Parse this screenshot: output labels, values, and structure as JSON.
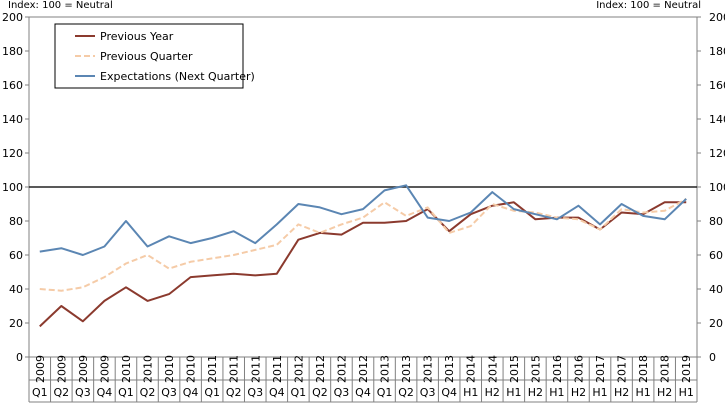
{
  "index_note_left": "Index: 100 = Neutral",
  "index_note_right": "Index: 100 = Neutral",
  "chart_data": {
    "type": "line",
    "ylim": [
      0,
      200
    ],
    "yticks": [
      0,
      20,
      40,
      60,
      80,
      100,
      120,
      140,
      160,
      180,
      200
    ],
    "grid": false,
    "reference_line": 100,
    "legend_position": "top-left (boxed)",
    "categories": [
      {
        "year": "2009",
        "period": "Q1"
      },
      {
        "year": "2009",
        "period": "Q2"
      },
      {
        "year": "2009",
        "period": "Q3"
      },
      {
        "year": "2009",
        "period": "Q4"
      },
      {
        "year": "2010",
        "period": "Q1"
      },
      {
        "year": "2010",
        "period": "Q2"
      },
      {
        "year": "2010",
        "period": "Q3"
      },
      {
        "year": "2010",
        "period": "Q4"
      },
      {
        "year": "2011",
        "period": "Q1"
      },
      {
        "year": "2011",
        "period": "Q2"
      },
      {
        "year": "2011",
        "period": "Q3"
      },
      {
        "year": "2011",
        "period": "Q4"
      },
      {
        "year": "2012",
        "period": "Q1"
      },
      {
        "year": "2012",
        "period": "Q2"
      },
      {
        "year": "2012",
        "period": "Q3"
      },
      {
        "year": "2012",
        "period": "Q4"
      },
      {
        "year": "2013",
        "period": "Q1"
      },
      {
        "year": "2013",
        "period": "Q2"
      },
      {
        "year": "2013",
        "period": "Q3"
      },
      {
        "year": "2013",
        "period": "Q4"
      },
      {
        "year": "2014",
        "period": "H1"
      },
      {
        "year": "2014",
        "period": "H2"
      },
      {
        "year": "2015",
        "period": "H1"
      },
      {
        "year": "2015",
        "period": "H2"
      },
      {
        "year": "2016",
        "period": "H1"
      },
      {
        "year": "2016",
        "period": "H2"
      },
      {
        "year": "2017",
        "period": "H1"
      },
      {
        "year": "2017",
        "period": "H2"
      },
      {
        "year": "2018",
        "period": "H1"
      },
      {
        "year": "2018",
        "period": "H2"
      },
      {
        "year": "2019",
        "period": "H1"
      }
    ],
    "series": [
      {
        "name": "Previous Year",
        "color": "#8b3a2e",
        "dash": "solid",
        "values": [
          18,
          30,
          21,
          33,
          41,
          33,
          37,
          47,
          48,
          49,
          48,
          49,
          69,
          73,
          72,
          79,
          79,
          80,
          87,
          74,
          84,
          89,
          91,
          81,
          82,
          82,
          75,
          85,
          84,
          91,
          91
        ]
      },
      {
        "name": "Previous Quarter",
        "color": "#f5cba7",
        "dash": "dashed",
        "values": [
          40,
          39,
          41,
          47,
          55,
          60,
          52,
          56,
          58,
          60,
          63,
          66,
          78,
          73,
          78,
          82,
          91,
          83,
          88,
          73,
          77,
          90,
          86,
          85,
          82,
          81,
          75,
          87,
          85,
          86,
          93
        ]
      },
      {
        "name": "Expectations (Next Quarter)",
        "color": "#5b86b3",
        "dash": "solid",
        "values": [
          62,
          64,
          60,
          65,
          80,
          65,
          71,
          67,
          70,
          74,
          67,
          78,
          90,
          88,
          84,
          87,
          98,
          101,
          82,
          80,
          85,
          97,
          87,
          84,
          81,
          89,
          78,
          90,
          83,
          81,
          93
        ]
      }
    ]
  }
}
